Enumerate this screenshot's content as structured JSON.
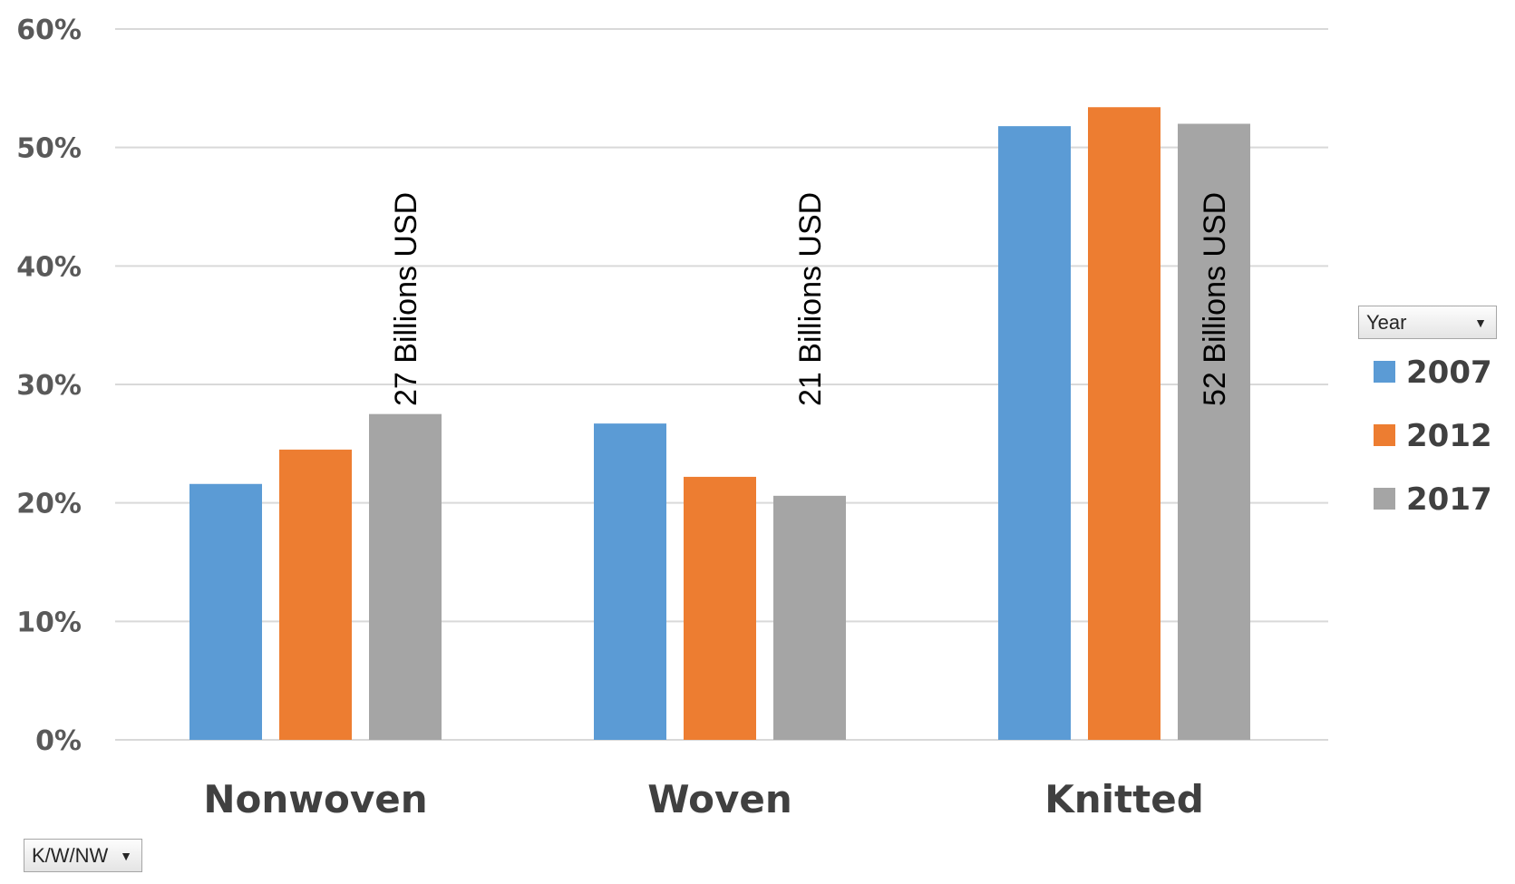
{
  "chart_data": {
    "type": "bar",
    "categories": [
      "Nonwoven",
      "Woven",
      "Knitted"
    ],
    "series": [
      {
        "name": "2007",
        "values": [
          21.6,
          26.7,
          51.8
        ],
        "color": "#5B9BD5"
      },
      {
        "name": "2012",
        "values": [
          24.5,
          22.2,
          53.4
        ],
        "color": "#ED7D31"
      },
      {
        "name": "2017",
        "values": [
          27.5,
          20.6,
          52.0
        ],
        "color": "#A5A5A5"
      }
    ],
    "ylim": [
      0,
      60
    ],
    "yticks": [
      "0%",
      "10%",
      "20%",
      "30%",
      "40%",
      "50%",
      "60%"
    ],
    "data_labels": [
      "27 Billions USD",
      "21 Billions USD",
      "52 Billions USD"
    ],
    "grid": true,
    "legend": {
      "title": "Year",
      "placement": "right"
    }
  },
  "filters": {
    "legend_field": "Year",
    "axis_field": "K/W/NW"
  }
}
